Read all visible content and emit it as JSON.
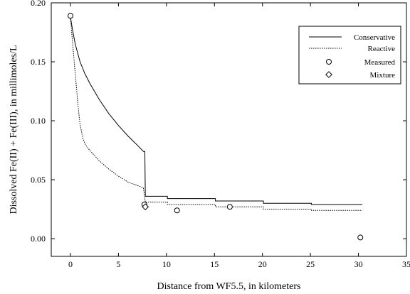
{
  "chart_data": {
    "type": "line",
    "xlabel": "Distance from WF5.5, in kilometers",
    "ylabel": "Dissolved Fe(II) + Fe(III), in millimoles/L",
    "xlim": [
      -2,
      35
    ],
    "ylim": [
      -0.015,
      0.2
    ],
    "xticks": [
      0,
      5,
      10,
      15,
      20,
      25,
      30,
      35
    ],
    "yticks": [
      0.0,
      0.05,
      0.1,
      0.15,
      0.2
    ],
    "ytick_labels": [
      "0.00",
      "0.05",
      "0.10",
      "0.15",
      "0.20"
    ],
    "legend_position": "top-right",
    "series": [
      {
        "name": "Conservative",
        "kind": "line",
        "style": "solid",
        "x": [
          0,
          0.2,
          0.5,
          1,
          1.5,
          2,
          3,
          4,
          5,
          6,
          7,
          7.6,
          7.75,
          7.8,
          10.1,
          10.1,
          15.1,
          15.1,
          20.1,
          20.1,
          25.1,
          25.1,
          30.4
        ],
        "y": [
          0.188,
          0.178,
          0.165,
          0.15,
          0.14,
          0.132,
          0.118,
          0.106,
          0.096,
          0.087,
          0.079,
          0.074,
          0.074,
          0.036,
          0.036,
          0.034,
          0.034,
          0.032,
          0.032,
          0.03,
          0.03,
          0.029,
          0.029
        ]
      },
      {
        "name": "Reactive",
        "kind": "line",
        "style": "dotted",
        "x": [
          0,
          0.2,
          0.5,
          0.8,
          1,
          1.3,
          1.6,
          2,
          3,
          4,
          5,
          6,
          7,
          7.6,
          7.8,
          10.1,
          10.1,
          15.1,
          15.1,
          20.1,
          20.1,
          25.1,
          25.1,
          30.4
        ],
        "y": [
          0.188,
          0.168,
          0.14,
          0.112,
          0.097,
          0.085,
          0.079,
          0.075,
          0.066,
          0.059,
          0.053,
          0.048,
          0.045,
          0.043,
          0.031,
          0.031,
          0.029,
          0.029,
          0.027,
          0.027,
          0.025,
          0.025,
          0.024,
          0.024
        ]
      },
      {
        "name": "Measured",
        "kind": "marker",
        "marker": "circle",
        "x": [
          0,
          7.7,
          11.1,
          16.6,
          30.2
        ],
        "y": [
          0.189,
          0.029,
          0.024,
          0.027,
          0.001
        ]
      },
      {
        "name": "Mixture",
        "kind": "marker",
        "marker": "diamond",
        "x": [
          7.8
        ],
        "y": [
          0.027
        ]
      }
    ]
  }
}
